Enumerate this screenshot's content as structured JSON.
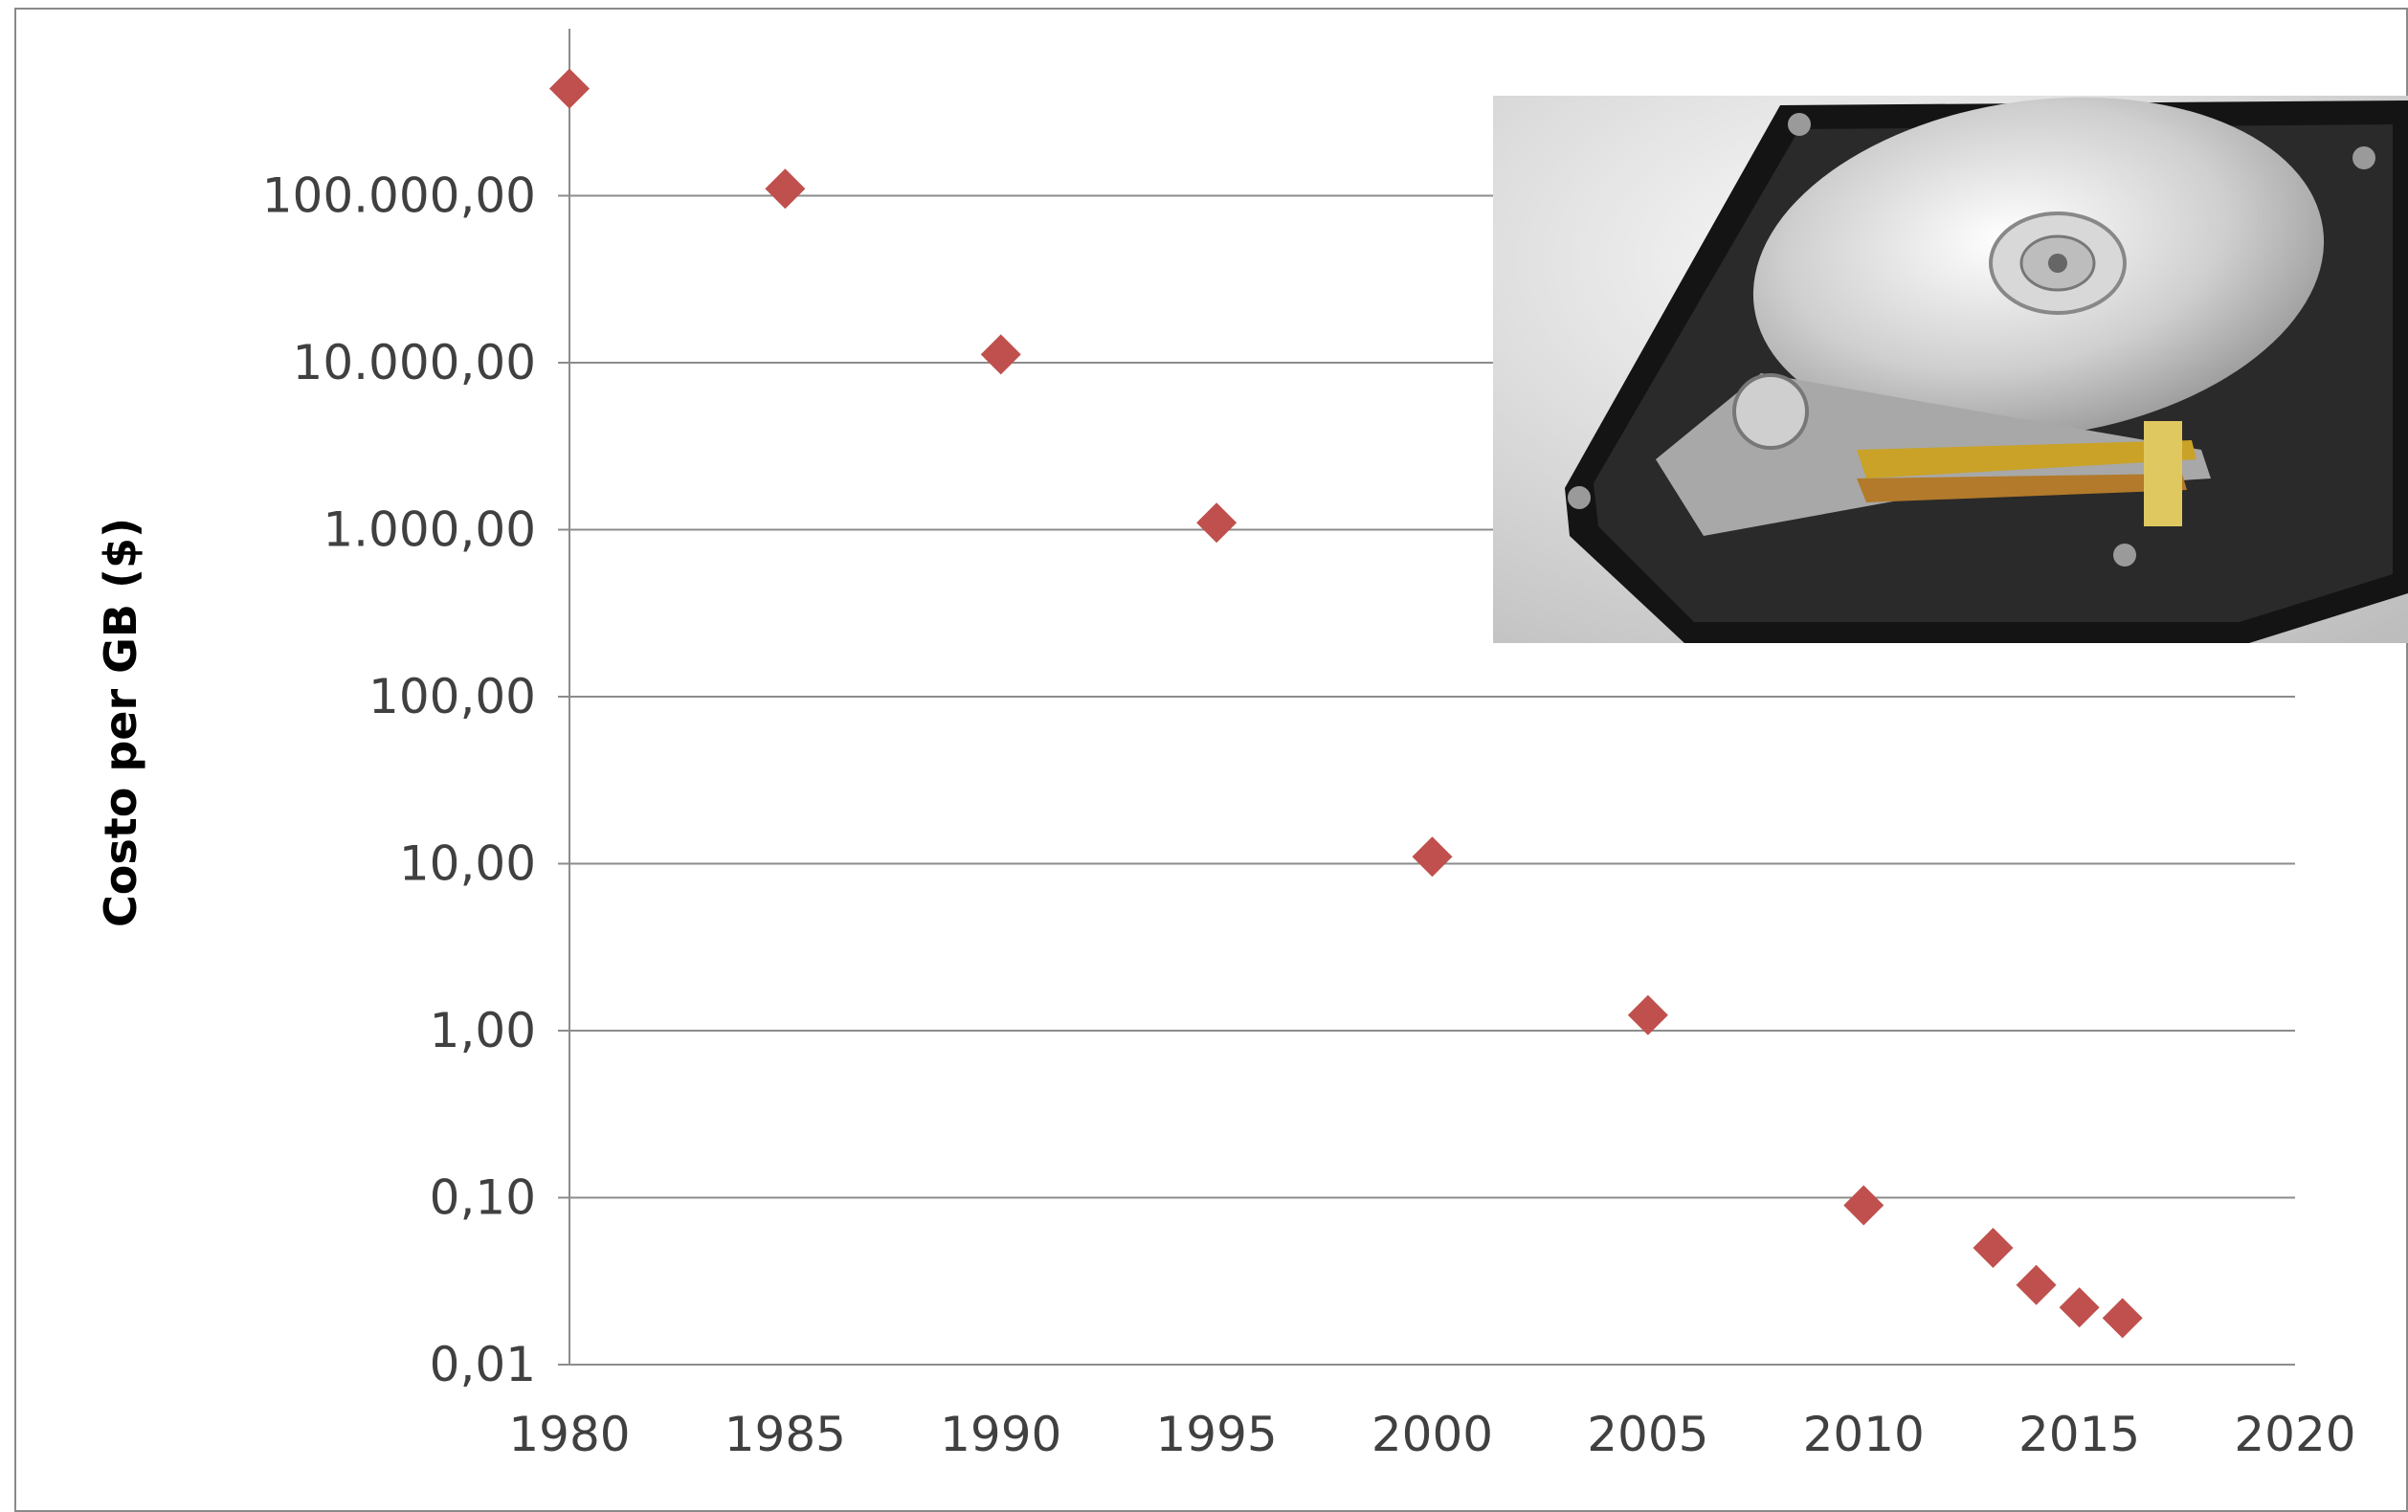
{
  "chart_data": {
    "type": "scatter",
    "title": "",
    "xlabel": "",
    "ylabel": "Costo per GB ($)",
    "y_scale": "log",
    "xlim": [
      1980,
      2020
    ],
    "ylim": [
      0.01,
      1000000
    ],
    "x_ticks": [
      "1980",
      "1985",
      "1990",
      "1995",
      "2000",
      "2005",
      "2010",
      "2015",
      "2020"
    ],
    "y_ticks": [
      "0,01",
      "0,10",
      "1,00",
      "10,00",
      "100,00",
      "1.000,00",
      "10.000,00",
      "100.000,00"
    ],
    "grid": "horizontal",
    "legend": "none",
    "marker": "diamond",
    "marker_color": "#C0504D",
    "series": [
      {
        "x": [
          1980,
          1985,
          1990,
          1995,
          2000,
          2005,
          2010,
          2013,
          2014,
          2015,
          2016
        ],
        "y": [
          437500,
          110000,
          11200,
          1100,
          11,
          1.24,
          0.09,
          0.05,
          0.03,
          0.022,
          0.019
        ]
      }
    ]
  },
  "inset_image": {
    "icon": "hard-disk-drive-photo"
  }
}
